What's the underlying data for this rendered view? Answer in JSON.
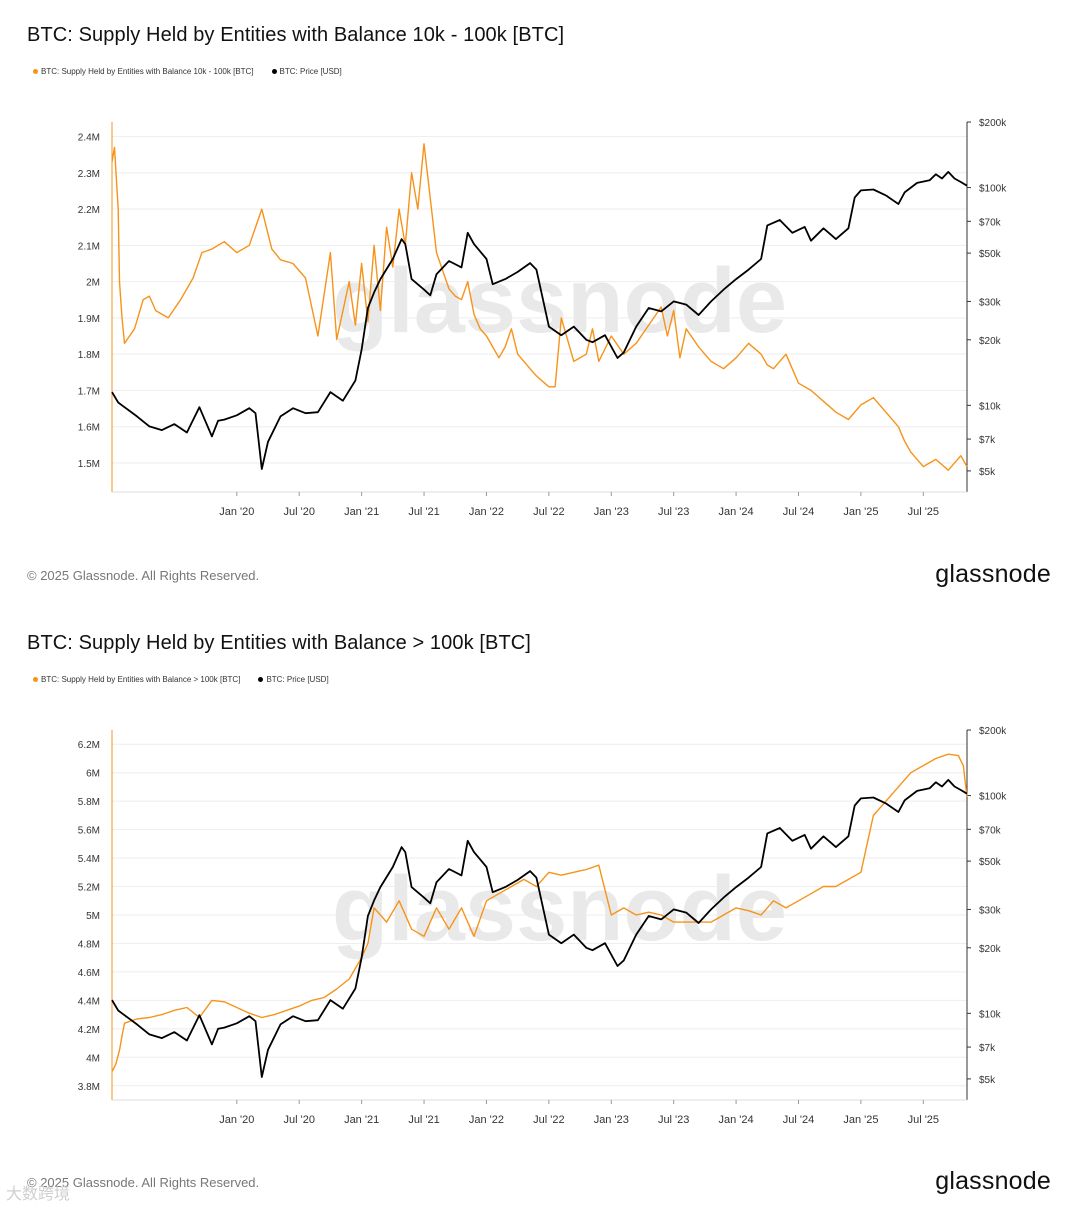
{
  "charts": [
    {
      "title": "BTC: Supply Held by Entities with Balance 10k - 100k [BTC]",
      "legend": [
        {
          "label": "BTC: Supply Held by Entities with Balance 10k - 100k [BTC]",
          "color": "#f7931a"
        },
        {
          "label": "BTC: Price [USD]",
          "color": "#000000"
        }
      ],
      "footer": "© 2025 Glassnode. All Rights Reserved.",
      "brand": "glassnode",
      "watermark": "glassnode"
    },
    {
      "title": "BTC: Supply Held by Entities with Balance > 100k [BTC]",
      "legend": [
        {
          "label": "BTC: Supply Held by Entities with Balance > 100k [BTC]",
          "color": "#f7931a"
        },
        {
          "label": "BTC: Price [USD]",
          "color": "#000000"
        }
      ],
      "footer": "© 2025 Glassnode. All Rights Reserved.",
      "brand": "glassnode",
      "watermark": "glassnode"
    }
  ],
  "overlay_text": "大数跨境",
  "colors": {
    "supply": "#f7931a",
    "price": "#000000",
    "grid": "#eeeeee",
    "axis": "#666666"
  },
  "chart_data": [
    {
      "type": "line",
      "title": "BTC: Supply Held by Entities with Balance 10k - 100k [BTC]",
      "x_ticks": [
        "Jan '20",
        "Jul '20",
        "Jan '21",
        "Jul '21",
        "Jan '22",
        "Jul '22",
        "Jan '23",
        "Jul '23",
        "Jan '24",
        "Jul '24",
        "Jan '25",
        "Jul '25"
      ],
      "x_range": [
        2019.0,
        2025.85
      ],
      "y_left": {
        "ticks": [
          1500000,
          1600000,
          1700000,
          1800000,
          1900000,
          2000000,
          2100000,
          2200000,
          2300000,
          2400000
        ],
        "tick_labels": [
          "1.5M",
          "1.6M",
          "1.7M",
          "1.8M",
          "1.9M",
          "2M",
          "2.1M",
          "2.2M",
          "2.3M",
          "2.4M"
        ],
        "range": [
          1420000,
          2440000
        ]
      },
      "y_right": {
        "scale": "log",
        "ticks": [
          5000,
          7000,
          10000,
          20000,
          30000,
          50000,
          70000,
          100000,
          200000
        ],
        "tick_labels": [
          "$5k",
          "$7k",
          "$10k",
          "$20k",
          "$30k",
          "$50k",
          "$70k",
          "$100k",
          "$200k"
        ],
        "range": [
          4000,
          200000
        ]
      },
      "series": [
        {
          "name": "BTC: Supply Held by Entities with Balance 10k - 100k [BTC]",
          "axis": "left",
          "color": "#f7931a",
          "x": [
            2019.0,
            2019.02,
            2019.05,
            2019.06,
            2019.08,
            2019.1,
            2019.18,
            2019.25,
            2019.3,
            2019.35,
            2019.45,
            2019.55,
            2019.65,
            2019.72,
            2019.8,
            2019.9,
            2020.0,
            2020.1,
            2020.2,
            2020.28,
            2020.35,
            2020.45,
            2020.55,
            2020.65,
            2020.75,
            2020.8,
            2020.9,
            2020.95,
            2021.0,
            2021.05,
            2021.1,
            2021.15,
            2021.2,
            2021.25,
            2021.3,
            2021.35,
            2021.4,
            2021.45,
            2021.5,
            2021.6,
            2021.7,
            2021.75,
            2021.8,
            2021.85,
            2021.9,
            2021.95,
            2022.0,
            2022.05,
            2022.1,
            2022.15,
            2022.2,
            2022.25,
            2022.3,
            2022.35,
            2022.4,
            2022.5,
            2022.55,
            2022.6,
            2022.7,
            2022.8,
            2022.85,
            2022.9,
            2023.0,
            2023.1,
            2023.2,
            2023.3,
            2023.4,
            2023.45,
            2023.5,
            2023.55,
            2023.6,
            2023.7,
            2023.8,
            2023.9,
            2024.0,
            2024.1,
            2024.2,
            2024.25,
            2024.3,
            2024.4,
            2024.5,
            2024.6,
            2024.7,
            2024.8,
            2024.9,
            2025.0,
            2025.1,
            2025.2,
            2025.3,
            2025.35,
            2025.4,
            2025.45,
            2025.5,
            2025.6,
            2025.7,
            2025.8,
            2025.85
          ],
          "y": [
            2330000,
            2370000,
            2200000,
            2000000,
            1900000,
            1830000,
            1870000,
            1950000,
            1960000,
            1920000,
            1900000,
            1950000,
            2010000,
            2080000,
            2090000,
            2110000,
            2080000,
            2100000,
            2200000,
            2090000,
            2060000,
            2050000,
            2010000,
            1850000,
            2080000,
            1840000,
            2000000,
            1880000,
            2050000,
            1890000,
            2100000,
            1920000,
            2150000,
            2040000,
            2200000,
            2100000,
            2300000,
            2200000,
            2380000,
            2080000,
            1980000,
            1960000,
            1950000,
            2000000,
            1910000,
            1870000,
            1850000,
            1820000,
            1790000,
            1820000,
            1870000,
            1800000,
            1780000,
            1760000,
            1740000,
            1710000,
            1710000,
            1900000,
            1780000,
            1800000,
            1870000,
            1780000,
            1850000,
            1800000,
            1830000,
            1880000,
            1930000,
            1850000,
            1920000,
            1790000,
            1870000,
            1820000,
            1780000,
            1760000,
            1790000,
            1830000,
            1800000,
            1770000,
            1760000,
            1800000,
            1720000,
            1700000,
            1670000,
            1640000,
            1620000,
            1660000,
            1680000,
            1640000,
            1600000,
            1560000,
            1530000,
            1510000,
            1490000,
            1510000,
            1480000,
            1520000,
            1490000
          ]
        },
        {
          "name": "BTC: Price [USD]",
          "axis": "right",
          "color": "#000000",
          "x": [
            2019.0,
            2019.05,
            2019.1,
            2019.2,
            2019.3,
            2019.4,
            2019.5,
            2019.6,
            2019.7,
            2019.8,
            2019.85,
            2019.9,
            2020.0,
            2020.1,
            2020.15,
            2020.2,
            2020.25,
            2020.35,
            2020.45,
            2020.55,
            2020.65,
            2020.75,
            2020.85,
            2020.95,
            2021.0,
            2021.05,
            2021.1,
            2021.15,
            2021.25,
            2021.32,
            2021.35,
            2021.4,
            2021.5,
            2021.55,
            2021.6,
            2021.7,
            2021.8,
            2021.85,
            2021.9,
            2022.0,
            2022.05,
            2022.15,
            2022.25,
            2022.35,
            2022.4,
            2022.5,
            2022.6,
            2022.7,
            2022.8,
            2022.85,
            2022.95,
            2023.05,
            2023.1,
            2023.2,
            2023.3,
            2023.4,
            2023.5,
            2023.6,
            2023.7,
            2023.8,
            2023.9,
            2024.0,
            2024.1,
            2024.2,
            2024.25,
            2024.35,
            2024.45,
            2024.55,
            2024.6,
            2024.7,
            2024.8,
            2024.9,
            2024.95,
            2025.0,
            2025.1,
            2025.2,
            2025.3,
            2025.35,
            2025.45,
            2025.55,
            2025.6,
            2025.65,
            2025.7,
            2025.75,
            2025.8,
            2025.85
          ],
          "y": [
            11500,
            10300,
            9800,
            8900,
            8000,
            7700,
            8200,
            7500,
            9800,
            7200,
            8500,
            8600,
            9000,
            9700,
            9200,
            5100,
            6800,
            8900,
            9700,
            9200,
            9300,
            11500,
            10500,
            13000,
            18000,
            28000,
            33000,
            38000,
            47000,
            58000,
            55000,
            38000,
            34000,
            32000,
            40000,
            46000,
            43000,
            62000,
            55000,
            47000,
            36000,
            38000,
            41000,
            45000,
            42000,
            23000,
            21000,
            23000,
            20000,
            19500,
            21000,
            16500,
            17500,
            23000,
            28000,
            27000,
            30000,
            29000,
            26000,
            30000,
            34000,
            38000,
            42000,
            47000,
            67000,
            71000,
            62000,
            66000,
            57000,
            65000,
            58000,
            65000,
            90000,
            97000,
            98000,
            92000,
            84000,
            95000,
            105000,
            108000,
            115000,
            110000,
            118000,
            110000,
            106000,
            102000
          ]
        }
      ]
    },
    {
      "type": "line",
      "title": "BTC: Supply Held by Entities with Balance > 100k [BTC]",
      "x_ticks": [
        "Jan '20",
        "Jul '20",
        "Jan '21",
        "Jul '21",
        "Jan '22",
        "Jul '22",
        "Jan '23",
        "Jul '23",
        "Jan '24",
        "Jul '24",
        "Jan '25",
        "Jul '25"
      ],
      "x_range": [
        2019.0,
        2025.85
      ],
      "y_left": {
        "ticks": [
          3800000,
          4000000,
          4200000,
          4400000,
          4600000,
          4800000,
          5000000,
          5200000,
          5400000,
          5600000,
          5800000,
          6000000,
          6200000
        ],
        "tick_labels": [
          "3.8M",
          "4M",
          "4.2M",
          "4.4M",
          "4.6M",
          "4.8M",
          "5M",
          "5.2M",
          "5.4M",
          "5.6M",
          "5.8M",
          "6M",
          "6.2M"
        ],
        "range": [
          3700000,
          6300000
        ]
      },
      "y_right": {
        "scale": "log",
        "ticks": [
          5000,
          7000,
          10000,
          20000,
          30000,
          50000,
          70000,
          100000,
          200000
        ],
        "tick_labels": [
          "$5k",
          "$7k",
          "$10k",
          "$20k",
          "$30k",
          "$50k",
          "$70k",
          "$100k",
          "$200k"
        ],
        "range": [
          4000,
          200000
        ]
      },
      "series": [
        {
          "name": "BTC: Supply Held by Entities with Balance > 100k [BTC]",
          "axis": "left",
          "color": "#f7931a",
          "x": [
            2019.0,
            2019.03,
            2019.06,
            2019.08,
            2019.1,
            2019.2,
            2019.3,
            2019.4,
            2019.5,
            2019.6,
            2019.7,
            2019.8,
            2019.9,
            2020.0,
            2020.1,
            2020.2,
            2020.3,
            2020.4,
            2020.5,
            2020.6,
            2020.7,
            2020.8,
            2020.9,
            2021.0,
            2021.05,
            2021.1,
            2021.2,
            2021.3,
            2021.4,
            2021.5,
            2021.6,
            2021.7,
            2021.8,
            2021.9,
            2022.0,
            2022.1,
            2022.2,
            2022.3,
            2022.4,
            2022.5,
            2022.6,
            2022.7,
            2022.8,
            2022.9,
            2023.0,
            2023.1,
            2023.2,
            2023.3,
            2023.4,
            2023.5,
            2023.6,
            2023.7,
            2023.8,
            2023.9,
            2024.0,
            2024.1,
            2024.2,
            2024.3,
            2024.4,
            2024.5,
            2024.6,
            2024.7,
            2024.8,
            2024.9,
            2025.0,
            2025.1,
            2025.2,
            2025.3,
            2025.4,
            2025.5,
            2025.6,
            2025.7,
            2025.78,
            2025.82,
            2025.85
          ],
          "y": [
            3900000,
            3950000,
            4050000,
            4150000,
            4240000,
            4270000,
            4280000,
            4300000,
            4330000,
            4350000,
            4280000,
            4400000,
            4390000,
            4350000,
            4310000,
            4280000,
            4300000,
            4330000,
            4360000,
            4400000,
            4420000,
            4480000,
            4550000,
            4700000,
            4800000,
            5050000,
            4950000,
            5100000,
            4900000,
            4850000,
            5050000,
            4900000,
            5050000,
            4850000,
            5100000,
            5150000,
            5200000,
            5250000,
            5200000,
            5300000,
            5280000,
            5300000,
            5320000,
            5350000,
            5000000,
            5050000,
            5000000,
            5020000,
            5000000,
            4950000,
            4950000,
            4950000,
            4950000,
            5000000,
            5050000,
            5030000,
            5000000,
            5100000,
            5050000,
            5100000,
            5150000,
            5200000,
            5200000,
            5250000,
            5300000,
            5700000,
            5800000,
            5900000,
            6000000,
            6050000,
            6100000,
            6130000,
            6120000,
            6050000,
            5830000
          ]
        },
        {
          "name": "BTC: Price [USD]",
          "axis": "right",
          "color": "#000000",
          "x": [
            2019.0,
            2019.05,
            2019.1,
            2019.2,
            2019.3,
            2019.4,
            2019.5,
            2019.6,
            2019.7,
            2019.8,
            2019.85,
            2019.9,
            2020.0,
            2020.1,
            2020.15,
            2020.2,
            2020.25,
            2020.35,
            2020.45,
            2020.55,
            2020.65,
            2020.75,
            2020.85,
            2020.95,
            2021.0,
            2021.05,
            2021.1,
            2021.15,
            2021.25,
            2021.32,
            2021.35,
            2021.4,
            2021.5,
            2021.55,
            2021.6,
            2021.7,
            2021.8,
            2021.85,
            2021.9,
            2022.0,
            2022.05,
            2022.15,
            2022.25,
            2022.35,
            2022.4,
            2022.5,
            2022.6,
            2022.7,
            2022.8,
            2022.85,
            2022.95,
            2023.05,
            2023.1,
            2023.2,
            2023.3,
            2023.4,
            2023.5,
            2023.6,
            2023.7,
            2023.8,
            2023.9,
            2024.0,
            2024.1,
            2024.2,
            2024.25,
            2024.35,
            2024.45,
            2024.55,
            2024.6,
            2024.7,
            2024.8,
            2024.9,
            2024.95,
            2025.0,
            2025.1,
            2025.2,
            2025.3,
            2025.35,
            2025.45,
            2025.55,
            2025.6,
            2025.65,
            2025.7,
            2025.75,
            2025.8,
            2025.85
          ],
          "y": [
            11500,
            10300,
            9800,
            8900,
            8000,
            7700,
            8200,
            7500,
            9800,
            7200,
            8500,
            8600,
            9000,
            9700,
            9200,
            5100,
            6800,
            8900,
            9700,
            9200,
            9300,
            11500,
            10500,
            13000,
            18000,
            28000,
            33000,
            38000,
            47000,
            58000,
            55000,
            38000,
            34000,
            32000,
            40000,
            46000,
            43000,
            62000,
            55000,
            47000,
            36000,
            38000,
            41000,
            45000,
            42000,
            23000,
            21000,
            23000,
            20000,
            19500,
            21000,
            16500,
            17500,
            23000,
            28000,
            27000,
            30000,
            29000,
            26000,
            30000,
            34000,
            38000,
            42000,
            47000,
            67000,
            71000,
            62000,
            66000,
            57000,
            65000,
            58000,
            65000,
            90000,
            97000,
            98000,
            92000,
            84000,
            95000,
            105000,
            108000,
            115000,
            110000,
            118000,
            110000,
            106000,
            102000
          ]
        }
      ]
    }
  ]
}
